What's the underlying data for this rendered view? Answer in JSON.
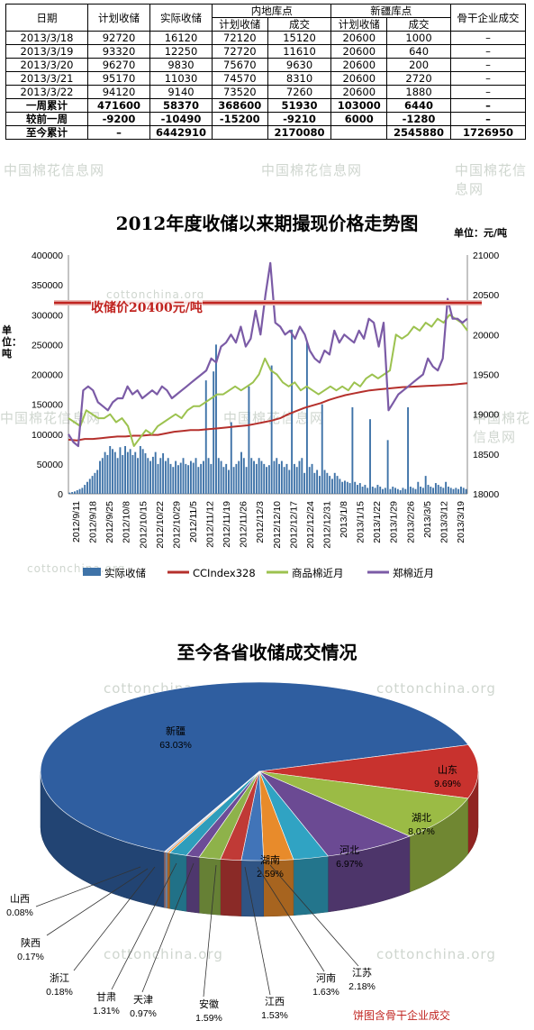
{
  "table": {
    "header_top": [
      "日期",
      "计划收储",
      "实际收储",
      "内地库点",
      "新疆库点",
      "骨干企业成交"
    ],
    "header_sub": [
      "计划收储",
      "成交",
      "计划收储",
      "成交"
    ],
    "rows": [
      [
        "2013/3/18",
        "92720",
        "16120",
        "72120",
        "15120",
        "20600",
        "1000",
        "–"
      ],
      [
        "2013/3/19",
        "93320",
        "12250",
        "72720",
        "11610",
        "20600",
        "640",
        "–"
      ],
      [
        "2013/3/20",
        "96270",
        "9830",
        "75670",
        "9630",
        "20600",
        "200",
        "–"
      ],
      [
        "2013/3/21",
        "95170",
        "11030",
        "74570",
        "8310",
        "20600",
        "2720",
        "–"
      ],
      [
        "2013/3/22",
        "94120",
        "9140",
        "73520",
        "7260",
        "20600",
        "1880",
        "–"
      ],
      [
        "一周累计",
        "471600",
        "58370",
        "368600",
        "51930",
        "103000",
        "6440",
        "–"
      ],
      [
        "较前一周",
        "-9200",
        "-10490",
        "-15200",
        "-9210",
        "6000",
        "-1280",
        "–"
      ],
      [
        "至今累计",
        "–",
        "6442910",
        "",
        "2170080",
        "",
        "2545880",
        "1726950"
      ]
    ]
  },
  "watermarks": {
    "cn": "中国棉花信息网",
    "en": "cottonchina.org"
  },
  "chart_data": [
    {
      "type": "bar+line",
      "title": "2012年度收储以来期撮现价格走势图",
      "unit_right": "单位：元/吨",
      "ylabel_left": "单位：吨",
      "annotation": "收储价20400元/吨",
      "price_line": 20400,
      "ylim_left": [
        0,
        400000
      ],
      "ylim_right": [
        18000,
        21000
      ],
      "yticks_left": [
        "0",
        "50000",
        "100000",
        "150000",
        "200000",
        "250000",
        "300000",
        "350000",
        "400000"
      ],
      "yticks_right": [
        "18000",
        "18500",
        "19000",
        "19500",
        "20000",
        "20500",
        "21000"
      ],
      "xticks": [
        "2012/9/11",
        "2012/9/18",
        "2012/9/25",
        "2012/10/8",
        "2012/10/15",
        "2012/10/22",
        "2012/10/29",
        "2012/11/5",
        "2012/11/12",
        "2012/11/19",
        "2012/11/26",
        "2012/12/3",
        "2012/12/10",
        "2012/12/17",
        "2012/12/24",
        "2012/12/31",
        "2013/1/8",
        "2013/1/15",
        "2013/1/22",
        "2013/1/29",
        "2013/2/26",
        "2013/3/5",
        "2013/3/12",
        "2013/3/19"
      ],
      "legend": [
        "实际收储",
        "CCIndex328",
        "商品棉近月",
        "郑棉近月"
      ],
      "colors": {
        "bars": "#3f73a8",
        "cc": "#b5302c",
        "spot": "#9cc24f",
        "zheng": "#7b5ba6",
        "price": "#c0231f"
      },
      "bars": [
        2000,
        3000,
        4000,
        6000,
        8000,
        10000,
        15000,
        20000,
        25000,
        30000,
        35000,
        40000,
        55000,
        60000,
        70000,
        65000,
        80000,
        75000,
        70000,
        60000,
        78000,
        65000,
        80000,
        70000,
        75000,
        65000,
        70000,
        60000,
        80000,
        75000,
        68000,
        60000,
        55000,
        62000,
        70000,
        50000,
        60000,
        68000,
        55000,
        60000,
        50000,
        45000,
        55000,
        48000,
        52000,
        60000,
        50000,
        48000,
        55000,
        52000,
        60000,
        45000,
        50000,
        55000,
        190000,
        60000,
        50000,
        205000,
        250000,
        60000,
        55000,
        45000,
        50000,
        40000,
        120000,
        45000,
        50000,
        55000,
        70000,
        60000,
        45000,
        180000,
        60000,
        55000,
        50000,
        60000,
        55000,
        50000,
        45000,
        48000,
        215000,
        55000,
        60000,
        50000,
        55000,
        45000,
        50000,
        40000,
        275000,
        50000,
        45000,
        55000,
        60000,
        35000,
        255000,
        45000,
        50000,
        35000,
        40000,
        30000,
        150000,
        40000,
        35000,
        30000,
        25000,
        35000,
        30000,
        25000,
        20000,
        22000,
        20000,
        18000,
        145000,
        20000,
        15000,
        18000,
        12000,
        15000,
        10000,
        125000,
        12000,
        10000,
        15000,
        12000,
        8000,
        10000,
        90000,
        8000,
        12000,
        10000,
        8000,
        6000,
        10000,
        8000,
        145000,
        12000,
        10000,
        8000,
        20000,
        12000,
        10000,
        30000,
        15000,
        12000,
        10000,
        18000,
        15000,
        12000,
        10000,
        20000,
        12000,
        10000,
        8000,
        10000,
        8000,
        12000,
        10000,
        8000
      ],
      "cc": [
        18680,
        18670,
        18690,
        18690,
        18700,
        18710,
        18720,
        18720,
        18730,
        18730,
        18740,
        18740,
        18760,
        18780,
        18790,
        18800,
        18800,
        18810,
        18820,
        18830,
        18840,
        18850,
        18860,
        18880,
        18900,
        18920,
        18950,
        19000,
        19040,
        19080,
        19110,
        19140,
        19180,
        19210,
        19240,
        19260,
        19280,
        19300,
        19310,
        19320,
        19330,
        19340,
        19345,
        19350,
        19355,
        19360,
        19365,
        19370,
        19380,
        19390
      ],
      "spot": [
        18950,
        18900,
        18850,
        19050,
        19000,
        18950,
        18950,
        19000,
        18900,
        18950,
        18850,
        18600,
        18700,
        18800,
        18750,
        18850,
        18900,
        18950,
        19000,
        18950,
        19050,
        19100,
        19100,
        19150,
        19200,
        19250,
        19250,
        19300,
        19350,
        19300,
        19350,
        19400,
        19500,
        19700,
        19550,
        19500,
        19400,
        19350,
        19400,
        19300,
        19350,
        19300,
        19250,
        19300,
        19350,
        19300,
        19350,
        19300,
        19400,
        19350,
        19450,
        19500,
        19450,
        19500,
        19550,
        20000,
        19950,
        20000,
        20100,
        20050,
        20150,
        20100,
        20200,
        20150,
        20250,
        20200,
        20150,
        20050
      ],
      "zheng": [
        18750,
        18650,
        18600,
        19300,
        19350,
        19300,
        19150,
        19100,
        19050,
        19150,
        19200,
        19200,
        19350,
        19250,
        19300,
        19200,
        19250,
        19300,
        19250,
        19350,
        19300,
        19200,
        19250,
        19300,
        19350,
        19400,
        19450,
        19500,
        19550,
        19700,
        19650,
        19850,
        19900,
        20000,
        19900,
        20100,
        19850,
        19950,
        20300,
        20000,
        20500,
        20900,
        20150,
        20100,
        20000,
        20050,
        19950,
        20100,
        20000,
        19800,
        19700,
        19650,
        19800,
        19750,
        20050,
        19900,
        20000,
        19950,
        19900,
        20050,
        19950,
        20200,
        20150,
        19850,
        20150,
        19050,
        19150,
        19250,
        19300,
        19350,
        19400,
        19450,
        19500,
        19700,
        19600,
        19550,
        19700,
        20450,
        20200,
        20200,
        20150,
        20200
      ]
    },
    {
      "type": "pie",
      "title": "至今各省收储成交情况",
      "note": "饼图含骨干企业成交",
      "slices": [
        {
          "name": "新疆",
          "value": 63.03,
          "label": "63.03%",
          "color": "#2f5ea0"
        },
        {
          "name": "山东",
          "value": 9.69,
          "label": "9.69%",
          "color": "#c8322e"
        },
        {
          "name": "湖北",
          "value": 8.07,
          "label": "8.07%",
          "color": "#9bbb45"
        },
        {
          "name": "河北",
          "value": 6.97,
          "label": "6.97%",
          "color": "#6b4a93"
        },
        {
          "name": "湖南",
          "value": 2.59,
          "label": "2.59%",
          "color": "#30a3c3"
        },
        {
          "name": "江苏",
          "value": 2.18,
          "label": "2.18%",
          "color": "#e88b2b"
        },
        {
          "name": "河南",
          "value": 1.63,
          "label": "1.63%",
          "color": "#4174b8"
        },
        {
          "name": "江西",
          "value": 1.53,
          "label": "1.53%",
          "color": "#c03a36"
        },
        {
          "name": "安徽",
          "value": 1.59,
          "label": "1.59%",
          "color": "#8eb24a"
        },
        {
          "name": "天津",
          "value": 0.97,
          "label": "0.97%",
          "color": "#6d4c97"
        },
        {
          "name": "甘肃",
          "value": 1.31,
          "label": "1.31%",
          "color": "#2e9dbb"
        },
        {
          "name": "浙江",
          "value": 0.18,
          "label": "0.18%",
          "color": "#f08a27"
        },
        {
          "name": "陕西",
          "value": 0.17,
          "label": "0.17%",
          "color": "#9fb6d8"
        },
        {
          "name": "山西",
          "value": 0.08,
          "label": "0.08%",
          "color": "#d89a96"
        }
      ]
    }
  ]
}
